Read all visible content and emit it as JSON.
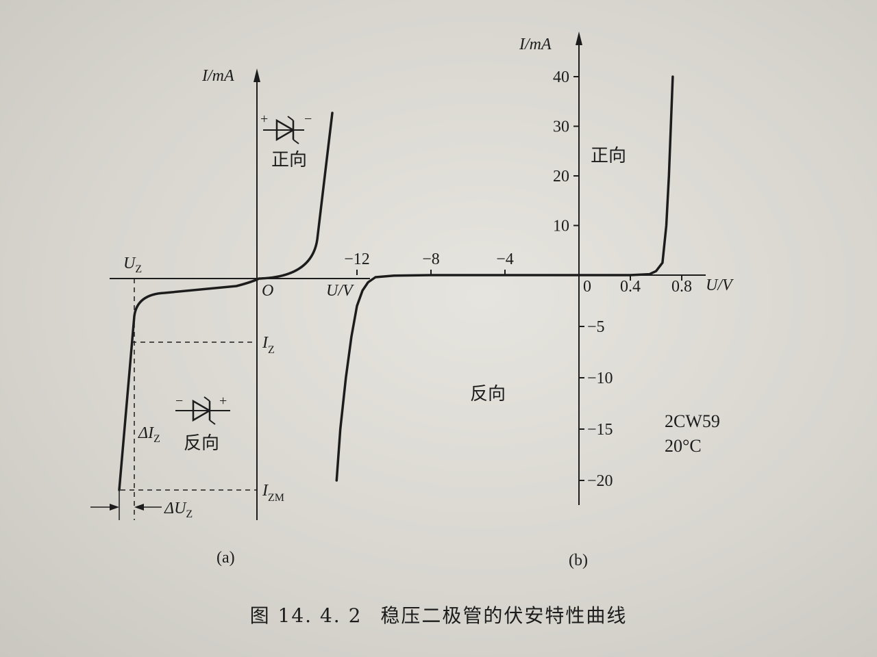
{
  "caption": {
    "number": "图 14. 4. 2",
    "title": "稳压二极管的伏安特性曲线"
  },
  "chart_data": [
    {
      "type": "line",
      "panel_label": "(a)",
      "xlabel": "U/V",
      "ylabel": "I/mA",
      "origin_label": "O",
      "region_labels": {
        "forward": "正向",
        "reverse": "反向"
      },
      "annotations": {
        "uz": "U",
        "uz_sub": "Z",
        "iz": "I",
        "iz_sub": "Z",
        "izm": "I",
        "izm_sub": "ZM",
        "delta_iz": "ΔI",
        "delta_iz_sub": "Z",
        "delta_uz": "ΔU",
        "delta_uz_sub": "Z"
      },
      "diode_polarity": {
        "forward_plus": "+",
        "forward_minus": "−",
        "reverse_minus": "−",
        "reverse_plus": "+"
      },
      "grid": false
    },
    {
      "type": "line",
      "panel_label": "(b)",
      "title": "2CW59",
      "subtitle": "20°C",
      "xlabel": "U/V",
      "ylabel": "I/mA",
      "x_ticks_negative": [
        "−12",
        "−8",
        "−4"
      ],
      "x_ticks_positive": [
        "0",
        "0.4",
        "0.8"
      ],
      "y_ticks_positive": [
        "10",
        "20",
        "30",
        "40"
      ],
      "y_ticks_negative": [
        "−5",
        "−10",
        "−15",
        "−20"
      ],
      "region_labels": {
        "forward": "正向",
        "reverse": "反向"
      },
      "xlim_reverse": [
        -12,
        0
      ],
      "xlim_forward": [
        0,
        0.8
      ],
      "ylim": [
        -20,
        40
      ],
      "grid": false,
      "series": [
        {
          "x": [
            -13.1,
            -12.9,
            -12.6,
            -12.3,
            -12.0,
            -11.7,
            -11.4,
            -11.0,
            -10.0,
            -8.0,
            -4.0,
            0,
            0.4,
            0.55,
            0.6,
            0.65,
            0.68,
            0.7,
            0.73
          ],
          "y": [
            -20,
            -15,
            -10,
            -6,
            -3,
            -1.5,
            -0.7,
            -0.2,
            -0.05,
            0,
            0,
            0,
            0,
            0.2,
            0.8,
            2.5,
            10,
            20,
            40
          ]
        }
      ]
    }
  ]
}
